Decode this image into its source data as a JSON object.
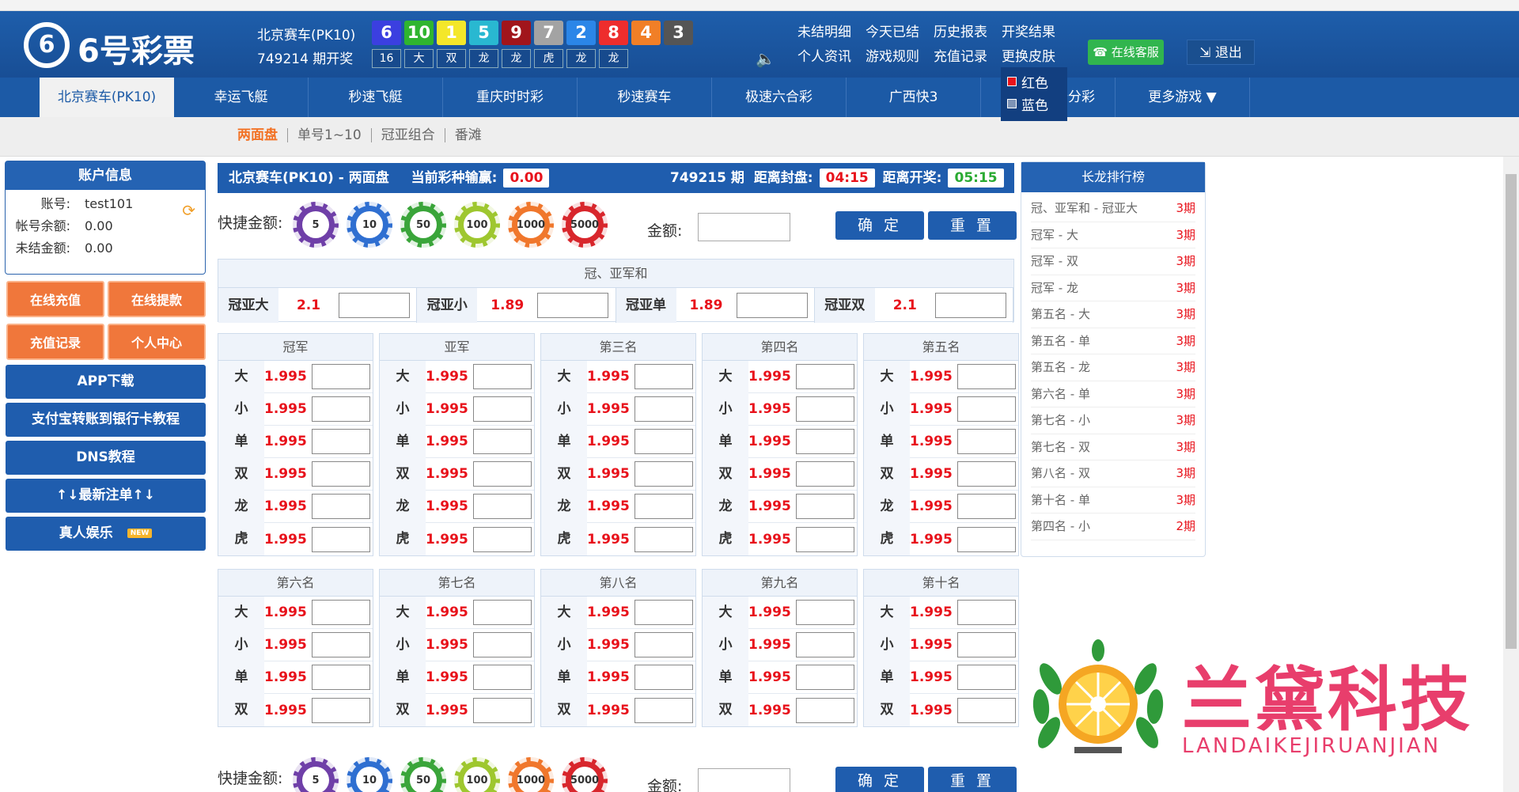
{
  "header": {
    "logo_digit": "6",
    "logo_text": "6号彩票",
    "game_name": "北京赛车(PK10)",
    "period_text": "749214 期开奖",
    "balls": [
      {
        "n": "6",
        "color": "#3b3fe0"
      },
      {
        "n": "10",
        "color": "#2fb52f"
      },
      {
        "n": "1",
        "color": "#f4e72a"
      },
      {
        "n": "5",
        "color": "#29b8d1"
      },
      {
        "n": "9",
        "color": "#a1151b"
      },
      {
        "n": "7",
        "color": "#a3a3a3"
      },
      {
        "n": "2",
        "color": "#2b86e8"
      },
      {
        "n": "8",
        "color": "#ee2d2d"
      },
      {
        "n": "4",
        "color": "#f17f27"
      },
      {
        "n": "3",
        "color": "#555555"
      }
    ],
    "sub_cells": [
      "16",
      "大",
      "双",
      "龙",
      "龙",
      "虎",
      "龙",
      "龙"
    ],
    "links": [
      "未结明细",
      "今天已结",
      "历史报表",
      "开奖结果",
      "个人资讯",
      "游戏规则",
      "充值记录",
      "更换皮肤"
    ],
    "skin_options": [
      "红色",
      "蓝色"
    ],
    "service_label": "在线客服",
    "logout_label": "退出"
  },
  "nav": [
    "北京赛车(PK10)",
    "幸运飞艇",
    "秒速飞艇",
    "重庆时时彩",
    "秒速赛车",
    "极速六合彩",
    "广西快3",
    "广东快乐十分彩",
    "更多游戏 ▼"
  ],
  "subnav": [
    "两面盘",
    "单号1~10",
    "冠亚组合",
    "番滩"
  ],
  "account": {
    "title": "账户信息",
    "rows": [
      {
        "k": "账号:",
        "v": "test101"
      },
      {
        "k": "帐号余额:",
        "v": "0.00"
      },
      {
        "k": "未结金额:",
        "v": "0.00"
      }
    ]
  },
  "side_buttons": {
    "recharge": "在线充值",
    "withdraw": "在线提款",
    "records": "充值记录",
    "center": "个人中心",
    "app": "APP下载",
    "alipay": "支付宝转账到银行卡教程",
    "dns": "DNS教程",
    "latest": "↑↓最新注单↑↓",
    "live": "真人娱乐",
    "new_badge": "NEW"
  },
  "main": {
    "title": "北京赛车(PK10) - 两面盘",
    "profit_label": "当前彩种输赢:",
    "profit": "0.00",
    "period": "749215 期",
    "close_label": "距离封盘:",
    "close_time": "04:15",
    "open_label": "距离开奖:",
    "open_time": "05:15",
    "quick_label": "快捷金额:",
    "amount_label": "金额:",
    "confirm": "确 定",
    "reset": "重 置",
    "chips": [
      {
        "v": "5",
        "c": "#6f3fa8"
      },
      {
        "v": "10",
        "c": "#2f6fd1"
      },
      {
        "v": "50",
        "c": "#3aa53a"
      },
      {
        "v": "100",
        "c": "#9ec72f"
      },
      {
        "v": "1000",
        "c": "#f0772c"
      },
      {
        "v": "5000",
        "c": "#d8262c"
      }
    ],
    "combo_title": "冠、亚军和",
    "combo": [
      {
        "l": "冠亚大",
        "o": "2.1"
      },
      {
        "l": "冠亚小",
        "o": "1.89"
      },
      {
        "l": "冠亚单",
        "o": "1.89"
      },
      {
        "l": "冠亚双",
        "o": "2.1"
      }
    ],
    "top_cols": [
      "冠军",
      "亚军",
      "第三名",
      "第四名",
      "第五名"
    ],
    "top_rows": [
      {
        "l": "大",
        "o": "1.995"
      },
      {
        "l": "小",
        "o": "1.995"
      },
      {
        "l": "单",
        "o": "1.995"
      },
      {
        "l": "双",
        "o": "1.995"
      },
      {
        "l": "龙",
        "o": "1.995"
      },
      {
        "l": "虎",
        "o": "1.995"
      }
    ],
    "bottom_cols": [
      "第六名",
      "第七名",
      "第八名",
      "第九名",
      "第十名"
    ],
    "bottom_rows": [
      {
        "l": "大",
        "o": "1.995"
      },
      {
        "l": "小",
        "o": "1.995"
      },
      {
        "l": "单",
        "o": "1.995"
      },
      {
        "l": "双",
        "o": "1.995"
      }
    ]
  },
  "rank": {
    "title": "长龙排行榜",
    "rows": [
      {
        "k": "冠、亚军和 - 冠亚大",
        "v": "3期"
      },
      {
        "k": "冠军 - 大",
        "v": "3期"
      },
      {
        "k": "冠军 - 双",
        "v": "3期"
      },
      {
        "k": "冠军 - 龙",
        "v": "3期"
      },
      {
        "k": "第五名 - 大",
        "v": "3期"
      },
      {
        "k": "第五名 - 单",
        "v": "3期"
      },
      {
        "k": "第五名 - 龙",
        "v": "3期"
      },
      {
        "k": "第六名 - 单",
        "v": "3期"
      },
      {
        "k": "第七名 - 小",
        "v": "3期"
      },
      {
        "k": "第七名 - 双",
        "v": "3期"
      },
      {
        "k": "第八名 - 双",
        "v": "3期"
      },
      {
        "k": "第十名 - 单",
        "v": "3期"
      },
      {
        "k": "第四名 - 小",
        "v": "2期"
      }
    ]
  },
  "watermark": {
    "cn": "兰黛科技",
    "en": "LANDAIKEJIRUANJIAN"
  }
}
